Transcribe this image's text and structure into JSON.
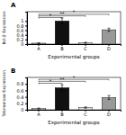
{
  "chart_data": [
    {
      "type": "bar",
      "title": "A",
      "ylabel": "Bcl-2 Expression",
      "xlabel": "Experimental groups",
      "categories": [
        "A",
        "B",
        "C",
        "D"
      ],
      "values": [
        0.04,
        1.0,
        0.06,
        0.62
      ],
      "errors": [
        0.015,
        0.13,
        0.02,
        0.07
      ],
      "colors": [
        "#bbbbbb",
        "#111111",
        "#dddddd",
        "#999999"
      ],
      "ylim": [
        0,
        1.4
      ],
      "yticks": [
        0,
        0.2,
        0.4,
        0.6,
        0.8,
        1
      ],
      "annotations": [
        {
          "text": "*",
          "x1": "A",
          "x2": "B",
          "y": 1.15
        },
        {
          "text": "**",
          "x1": "A",
          "x2": "C",
          "y": 1.22
        },
        {
          "text": "*",
          "x1": "A",
          "x2": "D",
          "y": 1.29
        }
      ]
    },
    {
      "type": "bar",
      "title": "B",
      "ylabel": "Telomerase Expression",
      "xlabel": "Experimental groups",
      "categories": [
        "A",
        "B",
        "C",
        "D"
      ],
      "values": [
        0.04,
        0.68,
        0.07,
        0.38
      ],
      "errors": [
        0.015,
        0.09,
        0.02,
        0.06
      ],
      "colors": [
        "#bbbbbb",
        "#111111",
        "#dddddd",
        "#999999"
      ],
      "ylim": [
        0,
        1.0
      ],
      "yticks": [
        0,
        0.2,
        0.4,
        0.6,
        0.8
      ],
      "annotations": [
        {
          "text": "*",
          "x1": "A",
          "x2": "B",
          "y": 0.82
        },
        {
          "text": "**",
          "x1": "A",
          "x2": "C",
          "y": 0.88
        },
        {
          "text": "*",
          "x1": "A",
          "x2": "D",
          "y": 0.94
        }
      ]
    }
  ]
}
